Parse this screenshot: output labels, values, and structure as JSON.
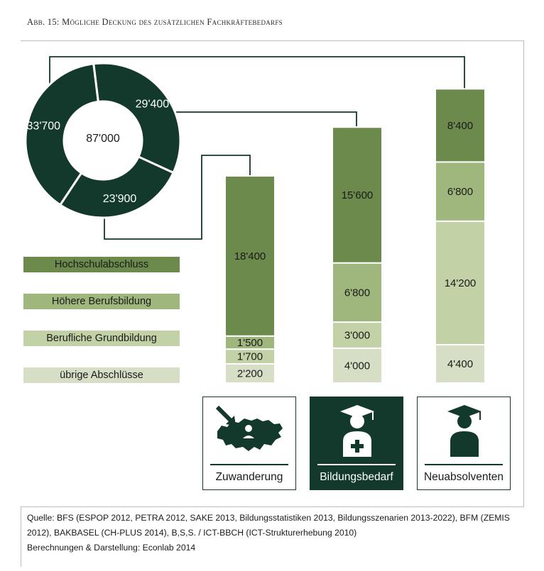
{
  "title": "Abb. 15:  Mögliche Deckung des zusätzlichen Fachkräftebedarfs",
  "colors": {
    "dark": "#12392b",
    "hochschul": "#6b8a4b",
    "hoehere": "#9fb67c",
    "berufliche": "#c3d1a6",
    "uebrige": "#d6dfc6"
  },
  "chart_data": {
    "donut": {
      "type": "pie",
      "total_label": "87'000",
      "slices": [
        {
          "label": "29'400",
          "value": 29400
        },
        {
          "label": "23'900",
          "value": 23900
        },
        {
          "label": "33'700",
          "value": 33700
        }
      ]
    },
    "bars": {
      "type": "bar",
      "stacked": true,
      "series_order": [
        "übrige Abschlüsse",
        "Berufliche Grundbildung",
        "Höhere Berufsbildung",
        "Hochschulabschluss"
      ],
      "categories": [
        {
          "name": "Zuwanderung",
          "segments": [
            {
              "series": "übrige Abschlüsse",
              "value": 2200,
              "label": "2'200"
            },
            {
              "series": "Berufliche Grundbildung",
              "value": 1700,
              "label": "1'700"
            },
            {
              "series": "Höhere Berufsbildung",
              "value": 1500,
              "label": "1'500"
            },
            {
              "series": "Hochschulabschluss",
              "value": 18400,
              "label": "18'400"
            }
          ]
        },
        {
          "name": "Bildungsbedarf",
          "segments": [
            {
              "series": "übrige Abschlüsse",
              "value": 4000,
              "label": "4'000"
            },
            {
              "series": "Berufliche Grundbildung",
              "value": 3000,
              "label": "3'000"
            },
            {
              "series": "Höhere Berufsbildung",
              "value": 6800,
              "label": "6'800"
            },
            {
              "series": "Hochschulabschluss",
              "value": 15600,
              "label": "15'600"
            }
          ]
        },
        {
          "name": "Neuabsolventen",
          "segments": [
            {
              "series": "übrige Abschlüsse",
              "value": 4400,
              "label": "4'400"
            },
            {
              "series": "Berufliche Grundbildung",
              "value": 14200,
              "label": "14'200"
            },
            {
              "series": "Höhere Berufsbildung",
              "value": 6800,
              "label": "6'800"
            },
            {
              "series": "Hochschulabschluss",
              "value": 8400,
              "label": "8'400"
            }
          ]
        }
      ]
    }
  },
  "legend": [
    {
      "label": "Hochschulabschluss",
      "color": "#6b8a4b"
    },
    {
      "label": "Höhere Berufsbildung",
      "color": "#9fb67c"
    },
    {
      "label": "Berufliche Grundbildung",
      "color": "#c3d1a6"
    },
    {
      "label": "übrige Abschlüsse",
      "color": "#d6dfc6"
    }
  ],
  "tiles": [
    {
      "label": "Zuwanderung",
      "icon": "switzerland-immigration-icon"
    },
    {
      "label": "Bildungsbedarf",
      "icon": "graduate-plus-icon"
    },
    {
      "label": "Neuabsolventen",
      "icon": "graduate-icon"
    }
  ],
  "source": {
    "line1_label": "Quelle",
    "line1_text": ": BFS (ESPOP 2012, PETRA 2012, SAKE 2013, Bildungsstatistiken 2013, Bildungsszenarien 2013-2022), BFM (ZEMIS 2012), BAKBASEL (CH-PLUS 2014), B,S,S. / ICT-BBCH (ICT-Strukturerhebung 2010)",
    "line2_label": "Berechnungen & Darstellung",
    "line2_text": ": Econlab 2014"
  }
}
